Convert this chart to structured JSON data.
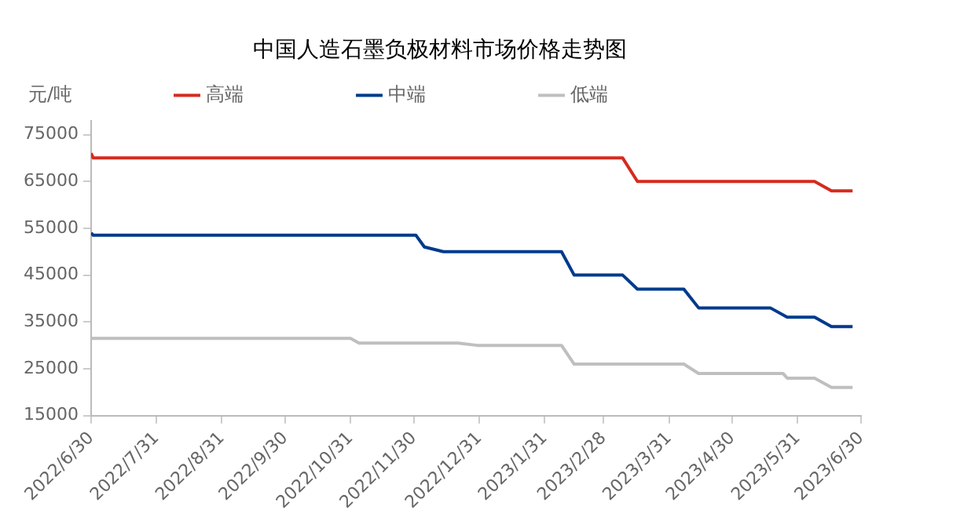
{
  "chart_data": {
    "type": "line",
    "title": "中国人造石墨负极材料市场价格走势图",
    "ylabel": "元/吨",
    "series": [
      {
        "name": "高端",
        "color": "#d52b1e",
        "x": [
          "2022-06-30",
          "2022-07-01",
          "2023-03-09",
          "2023-03-16",
          "2023-06-08",
          "2023-06-16",
          "2023-06-26"
        ],
        "values": [
          71000,
          70000,
          70000,
          65000,
          65000,
          63000,
          63000
        ]
      },
      {
        "name": "中端",
        "color": "#003a8c",
        "x": [
          "2022-06-30",
          "2022-07-01",
          "2022-12-01",
          "2022-12-05",
          "2022-12-14",
          "2023-02-08",
          "2023-02-14",
          "2023-03-09",
          "2023-03-16",
          "2023-04-07",
          "2023-04-14",
          "2023-05-18",
          "2023-05-26",
          "2023-06-08",
          "2023-06-16",
          "2023-06-26"
        ],
        "values": [
          54000,
          53500,
          53500,
          51000,
          50000,
          50000,
          45000,
          45000,
          42000,
          42000,
          38000,
          38000,
          36000,
          36000,
          34000,
          34000
        ]
      },
      {
        "name": "低端",
        "color": "#bfbfbf",
        "x": [
          "2022-06-30",
          "2022-10-31",
          "2022-11-04",
          "2022-12-21",
          "2022-12-30",
          "2023-02-08",
          "2023-02-14",
          "2023-04-07",
          "2023-04-14",
          "2023-05-24",
          "2023-05-26",
          "2023-06-08",
          "2023-06-16",
          "2023-06-26"
        ],
        "values": [
          31500,
          31500,
          30500,
          30500,
          30000,
          30000,
          26000,
          26000,
          24000,
          24000,
          23000,
          23000,
          21000,
          21000
        ]
      }
    ],
    "xlim": [
      "2022-06-30",
      "2023-06-30"
    ],
    "xticks": [
      {
        "value": "2022-06-30",
        "label": "2022/6/30"
      },
      {
        "value": "2022-07-31",
        "label": "2022/7/31"
      },
      {
        "value": "2022-08-31",
        "label": "2022/8/31"
      },
      {
        "value": "2022-09-30",
        "label": "2022/9/30"
      },
      {
        "value": "2022-10-31",
        "label": "2022/10/31"
      },
      {
        "value": "2022-11-30",
        "label": "2022/11/30"
      },
      {
        "value": "2022-12-31",
        "label": "2022/12/31"
      },
      {
        "value": "2023-01-31",
        "label": "2023/1/31"
      },
      {
        "value": "2023-02-28",
        "label": "2023/2/28"
      },
      {
        "value": "2023-03-31",
        "label": "2023/3/31"
      },
      {
        "value": "2023-04-30",
        "label": "2023/4/30"
      },
      {
        "value": "2023-05-31",
        "label": "2023/5/31"
      },
      {
        "value": "2023-06-30",
        "label": "2023/6/30"
      }
    ],
    "ylim": [
      15000,
      78000
    ],
    "yticks": [
      15000,
      25000,
      35000,
      45000,
      55000,
      65000,
      75000
    ],
    "grid": false,
    "legend": "top",
    "marker": "none",
    "line_style": "solid"
  }
}
